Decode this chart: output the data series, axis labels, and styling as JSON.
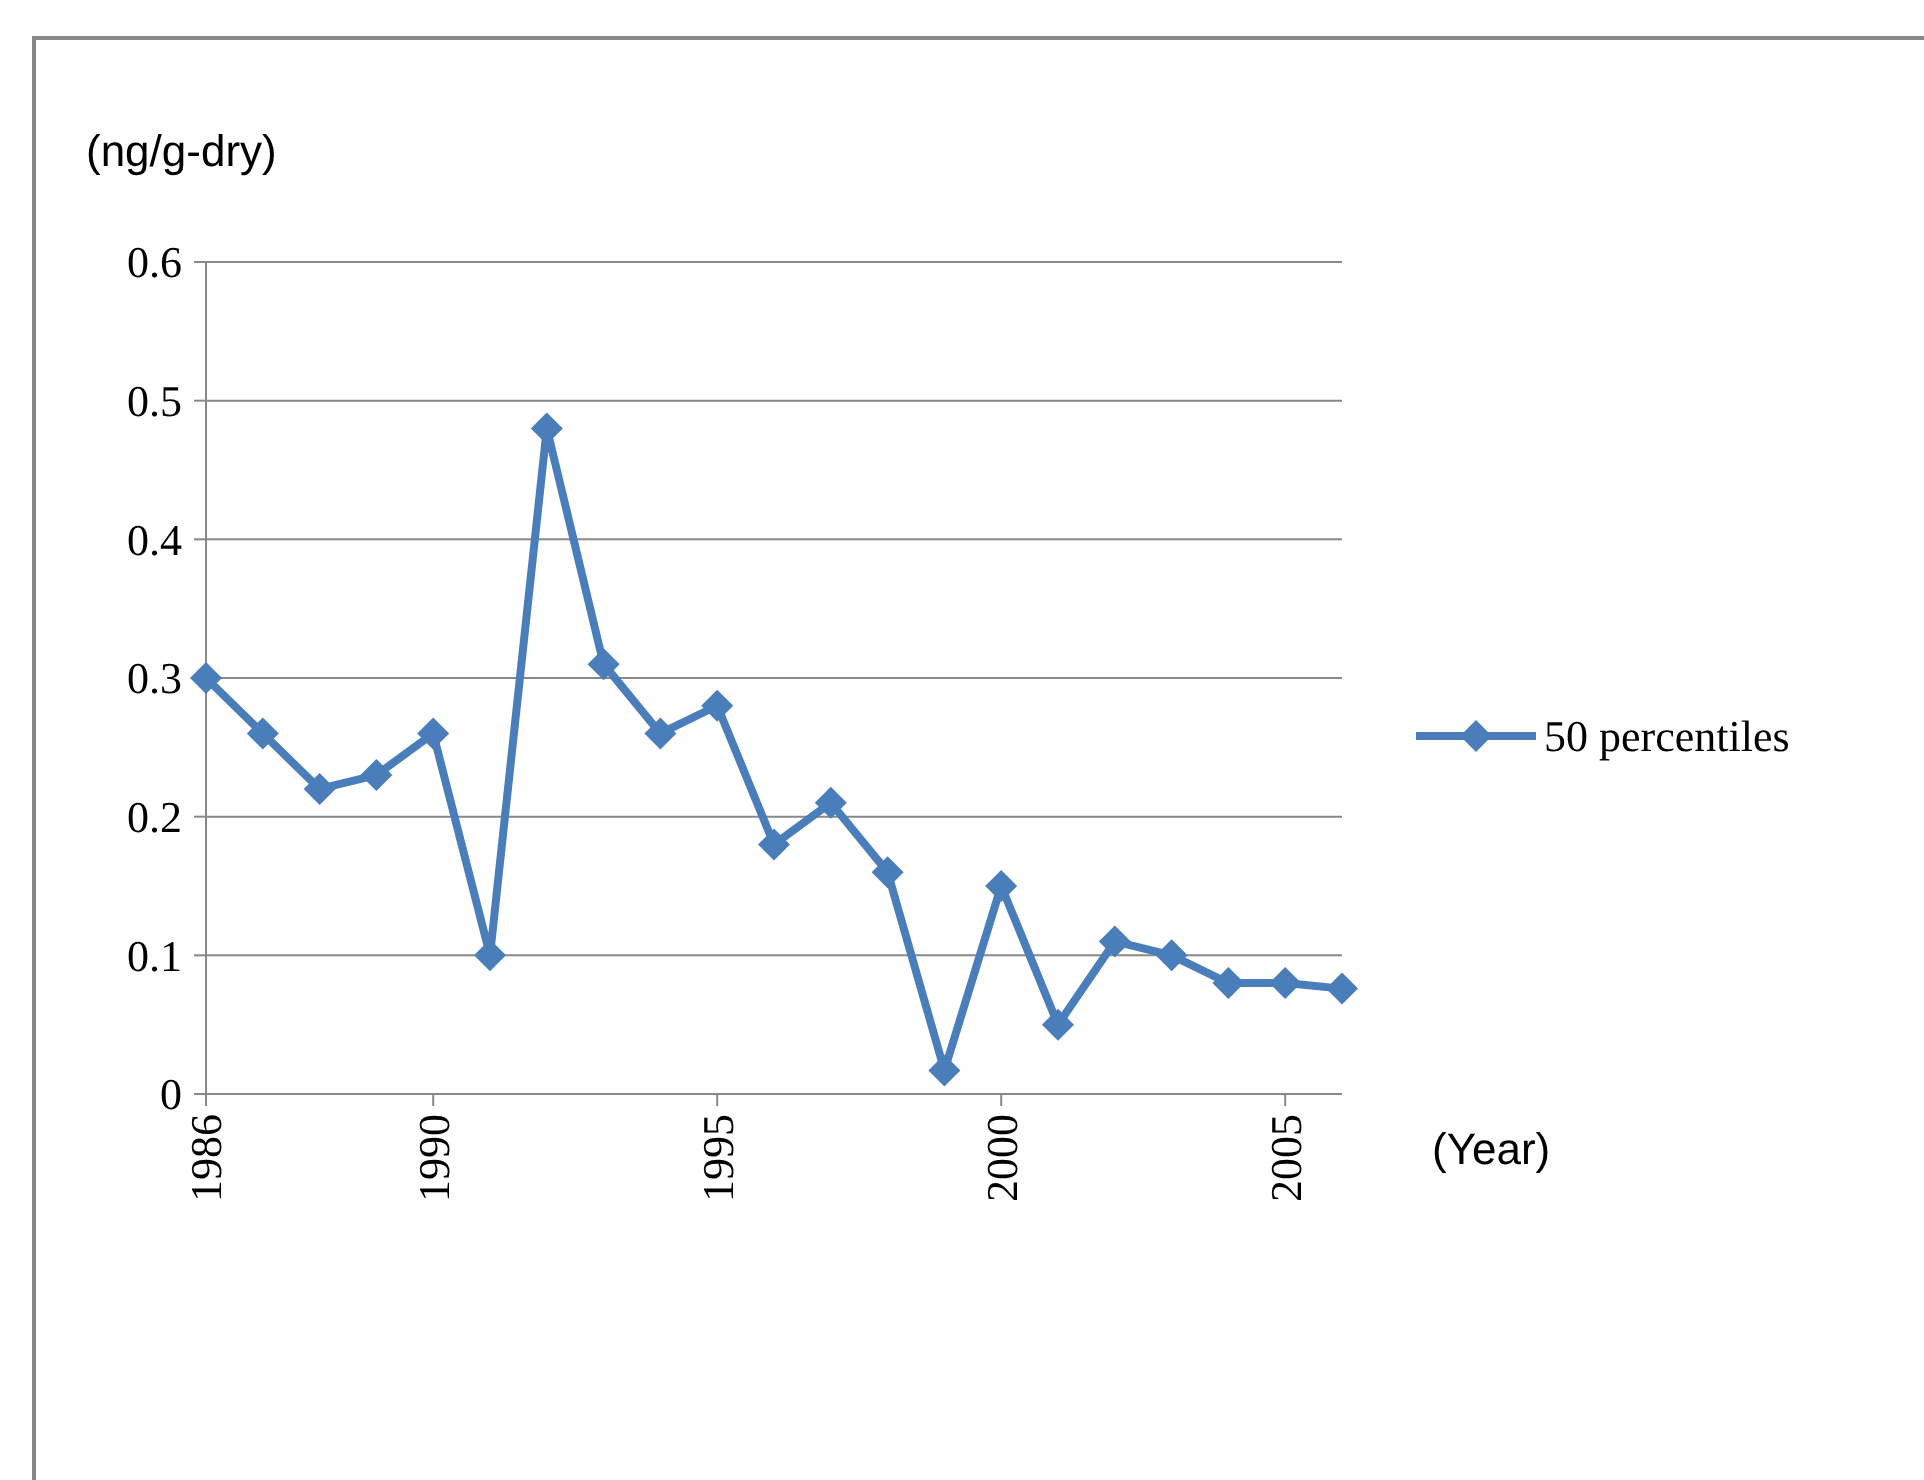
{
  "chart_data": {
    "type": "line",
    "ylabel": "(ng/g-dry)",
    "xlabel": "(Year)",
    "x": [
      1986,
      1987,
      1988,
      1989,
      1990,
      1991,
      1992,
      1993,
      1994,
      1995,
      1996,
      1997,
      1998,
      1999,
      2000,
      2001,
      2002,
      2003,
      2004,
      2005,
      2006
    ],
    "series": [
      {
        "name": "50 percentiles",
        "color": "#4a7ebb",
        "values": [
          0.3,
          0.26,
          0.22,
          0.23,
          0.26,
          0.1,
          0.48,
          0.31,
          0.26,
          0.28,
          0.18,
          0.21,
          0.16,
          0.017,
          0.15,
          0.05,
          0.11,
          0.1,
          0.08,
          0.08,
          0.076
        ]
      }
    ],
    "xlim": [
      1986,
      2006
    ],
    "xticks": [
      1986,
      1990,
      1995,
      2000,
      2005
    ],
    "ylim": [
      0,
      0.6
    ],
    "yticks": [
      0,
      0.1,
      0.2,
      0.3,
      0.4,
      0.5,
      0.6
    ],
    "grid": "y",
    "legend": "right",
    "marker": "diamond",
    "line_style": "solid"
  }
}
